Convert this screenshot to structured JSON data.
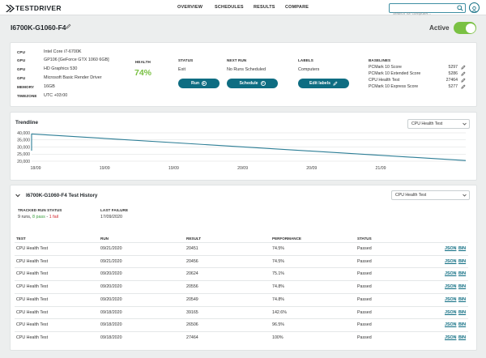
{
  "brand": {
    "logo_text": "TESTDRIVER"
  },
  "nav": {
    "items": [
      "OVERVIEW",
      "SCHEDULES",
      "RESULTS",
      "COMPARE"
    ]
  },
  "search": {
    "placeholder": "Search for computer..."
  },
  "computer": {
    "name": "I6700K-G1060-F4",
    "active_label": "Active",
    "active": true
  },
  "specs": [
    {
      "label": "CPU",
      "value": "Intel Core i7-6700K"
    },
    {
      "label": "GPU",
      "value": "GP106 [GeForce GTX 1060 6GB]"
    },
    {
      "label": "GPU",
      "value": "HD Graphics 530"
    },
    {
      "label": "GPU",
      "value": "Microsoft Basic Render Driver"
    },
    {
      "label": "MEMORY",
      "value": "16GB"
    },
    {
      "label": "TIMEZONE",
      "value": "UTC +03:00"
    }
  ],
  "health": {
    "label": "HEALTH",
    "value": "74%",
    "color": "#7ac143"
  },
  "status": {
    "label": "STATUS",
    "value": "Exit",
    "button": "Run"
  },
  "next_run": {
    "label": "NEXT RUN",
    "value": "No Runs Scheduled",
    "button": "Schedule"
  },
  "labels": {
    "label": "LABELS",
    "value": "Computers",
    "button": "Edit labels"
  },
  "baselines": {
    "label": "BASELINES",
    "items": [
      {
        "name": "PCMark 10 Score",
        "score": "5297"
      },
      {
        "name": "PCMark 10 Extended Score",
        "score": "5286"
      },
      {
        "name": "CPU Health Test",
        "score": "27464"
      },
      {
        "name": "PCMark 10 Express Score",
        "score": "5277"
      }
    ]
  },
  "trendline": {
    "title": "Trendline",
    "select": "CPU Health Test",
    "y_ticks": [
      "40,000",
      "35,000",
      "30,000",
      "25,000",
      "20,000"
    ],
    "x_ticks": [
      "18/09",
      "19/09",
      "19/09",
      "20/09",
      "20/09",
      "21/09"
    ]
  },
  "chart_data": {
    "type": "line",
    "title": "Trendline",
    "xlabel": "",
    "ylabel": "",
    "ylim": [
      20000,
      40000
    ],
    "x_ticks": [
      "18/09",
      "19/09",
      "19/09",
      "20/09",
      "20/09",
      "21/09"
    ],
    "series": [
      {
        "x": [
          "09/18/2020",
          "09/18/2020",
          "09/18/2020",
          "09/21/2020"
        ],
        "values": [
          27464,
          39165,
          39165,
          20451
        ]
      }
    ]
  },
  "history": {
    "title": "I6700K-G1060-F4 Test History",
    "select": "CPU Health Test",
    "tracked_label": "TRACKED RUN STATUS",
    "tracked_value": "9 runs, 8 pass - 1 fail",
    "tracked_parts": {
      "runs": "9 runs, ",
      "pass": "8 pass",
      "sep": " - ",
      "fail": "1 fail"
    },
    "tracked_colors": {
      "pass": "#3a9e3f",
      "fail": "#d2232a"
    },
    "last_failure_label": "LAST FAILURE",
    "last_failure_value": "17/09/2020",
    "columns": [
      "TEST",
      "RUN",
      "RESULT",
      "PERFORMANCE",
      "STATUS"
    ],
    "link_json": "JSON",
    "link_bin": "BIN",
    "rows": [
      {
        "test": "CPU Health Test",
        "run": "09/21/2020",
        "result": "20451",
        "performance": "74.5%",
        "status": "Passed"
      },
      {
        "test": "CPU Health Test",
        "run": "09/21/2020",
        "result": "20456",
        "performance": "74.5%",
        "status": "Passed"
      },
      {
        "test": "CPU Health Test",
        "run": "09/20/2020",
        "result": "20624",
        "performance": "75.1%",
        "status": "Passed"
      },
      {
        "test": "CPU Health Test",
        "run": "09/20/2020",
        "result": "20556",
        "performance": "74.8%",
        "status": "Passed"
      },
      {
        "test": "CPU Health Test",
        "run": "09/20/2020",
        "result": "20549",
        "performance": "74.8%",
        "status": "Passed"
      },
      {
        "test": "CPU Health Test",
        "run": "09/18/2020",
        "result": "39165",
        "performance": "142.6%",
        "status": "Passed"
      },
      {
        "test": "CPU Health Test",
        "run": "09/18/2020",
        "result": "26506",
        "performance": "96.5%",
        "status": "Passed"
      },
      {
        "test": "CPU Health Test",
        "run": "09/18/2020",
        "result": "27464",
        "performance": "100%",
        "status": "Passed"
      }
    ]
  },
  "colors": {
    "accent": "#0e6d82",
    "active_toggle": "#7ac143",
    "line": "#2d7e96"
  }
}
